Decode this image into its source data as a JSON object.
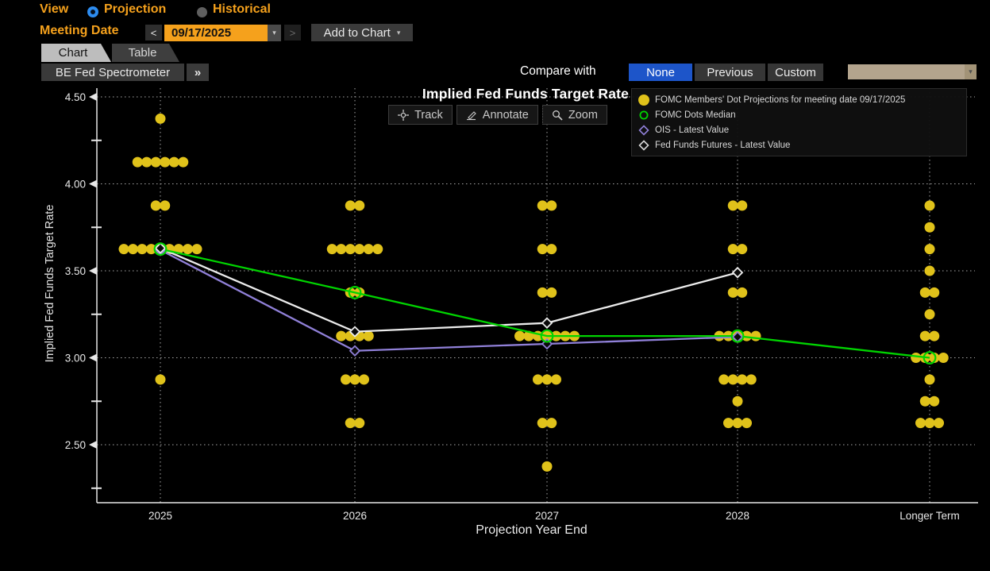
{
  "header": {
    "view": {
      "label": "View",
      "options": [
        {
          "label": "Projection",
          "selected": true
        },
        {
          "label": "Historical",
          "selected": false
        }
      ]
    },
    "meeting_date": {
      "label": "Meeting Date",
      "prev_button": "<",
      "value": "09/17/2025",
      "dropdown_arrow": "▾",
      "next_button": ">",
      "add_button": "Add to Chart",
      "add_button_arrow": "▾"
    },
    "tabs": [
      {
        "label": "Chart",
        "active": true
      },
      {
        "label": "Table",
        "active": false
      }
    ],
    "toolbar": {
      "spectrometer_label": "BE Fed Spectrometer",
      "expand_label": "»",
      "compare_label": "Compare with",
      "compare_options": [
        {
          "label": "None",
          "selected": true
        },
        {
          "label": "Previous",
          "selected": false
        },
        {
          "label": "Custom",
          "selected": false
        }
      ],
      "compare_custom_value": ""
    }
  },
  "chart": {
    "tools": [
      {
        "label": "Track",
        "icon": "track-crosshair-icon"
      },
      {
        "label": "Annotate",
        "icon": "annotate-pencil-icon"
      },
      {
        "label": "Zoom",
        "icon": "zoom-magnifier-icon"
      }
    ],
    "legend": [
      {
        "label": "FOMC Members' Dot Projections for meeting date 09/17/2025",
        "marker": "filled-circle",
        "color": "#e0c21a"
      },
      {
        "label": "FOMC Dots Median",
        "marker": "open-circle",
        "color": "#00d400"
      },
      {
        "label": "OIS - Latest Value",
        "marker": "open-diamond",
        "color": "#9080d8"
      },
      {
        "label": "Fed Funds Futures - Latest Value",
        "marker": "open-diamond",
        "color": "#d8d8d8"
      }
    ]
  },
  "chart_data": {
    "type": "scatter",
    "title": "Implied Fed Funds Target Rate",
    "xlabel": "Projection Year End",
    "ylabel": "Implied Fed Funds Target Rate",
    "categories": [
      "2025",
      "2026",
      "2027",
      "2028",
      "Longer Term"
    ],
    "ylim": [
      2.2,
      4.55
    ],
    "yticks": [
      2.5,
      3.0,
      3.5,
      4.0,
      4.5
    ],
    "ytick_minor": [
      2.25,
      2.75,
      3.25,
      3.75,
      4.25
    ],
    "grid": "dotted",
    "dot_color": "#e0c21a",
    "dot_projections": [
      {
        "category": "2025",
        "rows": [
          {
            "rate": 4.375,
            "count": 1
          },
          {
            "rate": 4.125,
            "count": 6
          },
          {
            "rate": 3.875,
            "count": 2
          },
          {
            "rate": 3.625,
            "count": 9
          },
          {
            "rate": 2.875,
            "count": 1
          }
        ]
      },
      {
        "category": "2026",
        "rows": [
          {
            "rate": 3.875,
            "count": 2
          },
          {
            "rate": 3.625,
            "count": 6
          },
          {
            "rate": 3.375,
            "count": 2
          },
          {
            "rate": 3.125,
            "count": 4
          },
          {
            "rate": 2.875,
            "count": 3
          },
          {
            "rate": 2.625,
            "count": 2
          }
        ]
      },
      {
        "category": "2027",
        "rows": [
          {
            "rate": 3.875,
            "count": 2
          },
          {
            "rate": 3.625,
            "count": 2
          },
          {
            "rate": 3.375,
            "count": 2
          },
          {
            "rate": 3.125,
            "count": 7
          },
          {
            "rate": 2.875,
            "count": 3
          },
          {
            "rate": 2.625,
            "count": 2
          },
          {
            "rate": 2.375,
            "count": 1
          }
        ]
      },
      {
        "category": "2028",
        "rows": [
          {
            "rate": 3.875,
            "count": 2
          },
          {
            "rate": 3.625,
            "count": 2
          },
          {
            "rate": 3.375,
            "count": 2
          },
          {
            "rate": 3.125,
            "count": 5
          },
          {
            "rate": 2.875,
            "count": 4
          },
          {
            "rate": 2.75,
            "count": 1
          },
          {
            "rate": 2.625,
            "count": 3
          }
        ]
      },
      {
        "category": "Longer Term",
        "rows": [
          {
            "rate": 3.875,
            "count": 1
          },
          {
            "rate": 3.75,
            "count": 1
          },
          {
            "rate": 3.625,
            "count": 1
          },
          {
            "rate": 3.5,
            "count": 1
          },
          {
            "rate": 3.375,
            "count": 2
          },
          {
            "rate": 3.25,
            "count": 1
          },
          {
            "rate": 3.125,
            "count": 2
          },
          {
            "rate": 3.0,
            "count": 4
          },
          {
            "rate": 2.875,
            "count": 1
          },
          {
            "rate": 2.75,
            "count": 2
          },
          {
            "rate": 2.625,
            "count": 3
          }
        ]
      }
    ],
    "series": [
      {
        "name": "OIS - Latest Value",
        "color": "#9080d8",
        "marker": "open-diamond",
        "points": [
          {
            "category": "2025",
            "rate": 3.62
          },
          {
            "category": "2026",
            "rate": 3.04
          },
          {
            "category": "2027",
            "rate": 3.08
          },
          {
            "category": "2028",
            "rate": 3.12
          }
        ]
      },
      {
        "name": "Fed Funds Futures - Latest Value",
        "color": "#ececec",
        "marker": "open-diamond",
        "points": [
          {
            "category": "2025",
            "rate": 3.63
          },
          {
            "category": "2026",
            "rate": 3.15
          },
          {
            "category": "2027",
            "rate": 3.2
          },
          {
            "category": "2028",
            "rate": 3.49
          }
        ]
      },
      {
        "name": "FOMC Dots Median",
        "color": "#00d400",
        "marker": "open-circle",
        "points": [
          {
            "category": "2025",
            "rate": 3.625
          },
          {
            "category": "2026",
            "rate": 3.375
          },
          {
            "category": "2027",
            "rate": 3.125
          },
          {
            "category": "2028",
            "rate": 3.125
          },
          {
            "category": "Longer Term",
            "rate": 3.0
          }
        ]
      }
    ]
  }
}
